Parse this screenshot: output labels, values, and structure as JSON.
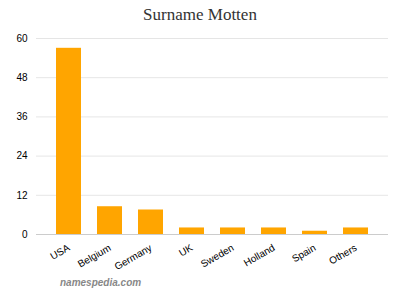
{
  "chart_data": {
    "type": "bar",
    "title": "Surname Motten",
    "categories": [
      "USA",
      "Belgium",
      "Germany",
      "UK",
      "Sweden",
      "Holland",
      "Spain",
      "Others"
    ],
    "values": [
      57,
      8.5,
      7.5,
      2,
      2,
      2,
      1,
      2
    ],
    "color": "#FFA500",
    "ylim": [
      0,
      60
    ],
    "yticks": [
      0,
      12,
      24,
      36,
      48,
      60
    ],
    "grid": true,
    "caption": "namespedia.com"
  }
}
